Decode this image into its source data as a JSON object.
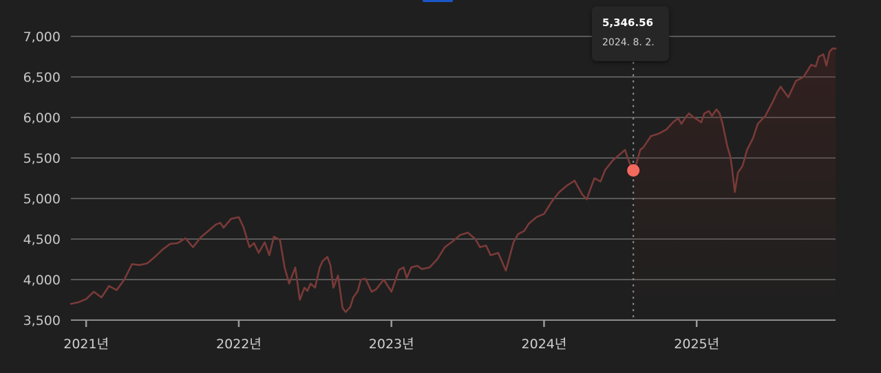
{
  "chart_data": {
    "type": "line",
    "y_ticks": [
      "3,500",
      "4,000",
      "4,500",
      "5,000",
      "5,500",
      "6,000",
      "6,500",
      "7,000"
    ],
    "y_tick_values": [
      3500,
      4000,
      4500,
      5000,
      5500,
      6000,
      6500,
      7000
    ],
    "ylim": [
      3500,
      7000
    ],
    "x_tick_labels": [
      "2021년",
      "2022년",
      "2023년",
      "2024년",
      "2025년"
    ],
    "x_tick_dates": [
      2021.0,
      2022.0,
      2023.0,
      2024.0,
      2025.0
    ],
    "xlim": [
      2020.9,
      2025.91
    ],
    "grid": true,
    "line_color": "#7a3a38",
    "marker_color": "#f4695e",
    "series": [
      {
        "x": [
          2020.9,
          2020.95,
          2021.0,
          2021.05,
          2021.1,
          2021.15,
          2021.2,
          2021.25,
          2021.3,
          2021.35,
          2021.4,
          2021.45,
          2021.5,
          2021.55,
          2021.6,
          2021.65,
          2021.7,
          2021.75,
          2021.8,
          2021.85,
          2021.88,
          2021.9,
          2021.95,
          2022.0,
          2022.03,
          2022.07,
          2022.1,
          2022.13,
          2022.17,
          2022.2,
          2022.23,
          2022.27,
          2022.3,
          2022.33,
          2022.37,
          2022.4,
          2022.43,
          2022.45,
          2022.47,
          2022.5,
          2022.53,
          2022.55,
          2022.58,
          2022.6,
          2022.62,
          2022.65,
          2022.68,
          2022.7,
          2022.73,
          2022.75,
          2022.78,
          2022.8,
          2022.83,
          2022.87,
          2022.9,
          2022.95,
          2023.0,
          2023.05,
          2023.08,
          2023.1,
          2023.13,
          2023.17,
          2023.2,
          2023.25,
          2023.3,
          2023.35,
          2023.4,
          2023.45,
          2023.5,
          2023.55,
          2023.58,
          2023.62,
          2023.65,
          2023.7,
          2023.75,
          2023.8,
          2023.83,
          2023.87,
          2023.9,
          2023.95,
          2024.0,
          2024.05,
          2024.1,
          2024.15,
          2024.2,
          2024.25,
          2024.28,
          2024.3,
          2024.33,
          2024.37,
          2024.4,
          2024.45,
          2024.5,
          2024.53,
          2024.56,
          2024.585,
          2024.6,
          2024.63,
          2024.65,
          2024.7,
          2024.75,
          2024.8,
          2024.85,
          2024.88,
          2024.9,
          2024.93,
          2024.95,
          2024.98,
          2025.0,
          2025.03,
          2025.05,
          2025.08,
          2025.1,
          2025.13,
          2025.15,
          2025.17,
          2025.2,
          2025.22,
          2025.23,
          2025.25,
          2025.27,
          2025.3,
          2025.33,
          2025.37,
          2025.4,
          2025.45,
          2025.5,
          2025.53,
          2025.55,
          2025.6,
          2025.65,
          2025.7,
          2025.72,
          2025.75,
          2025.78,
          2025.8,
          2025.83,
          2025.85,
          2025.87,
          2025.89,
          2025.91
        ],
        "y": [
          3700,
          3720,
          3760,
          3850,
          3780,
          3920,
          3870,
          4000,
          4190,
          4180,
          4200,
          4280,
          4370,
          4440,
          4450,
          4510,
          4400,
          4520,
          4600,
          4680,
          4700,
          4640,
          4750,
          4770,
          4650,
          4400,
          4450,
          4330,
          4460,
          4300,
          4530,
          4490,
          4150,
          3950,
          4150,
          3750,
          3900,
          3860,
          3950,
          3900,
          4150,
          4230,
          4280,
          4180,
          3900,
          4050,
          3650,
          3600,
          3660,
          3780,
          3860,
          4000,
          4010,
          3850,
          3880,
          4000,
          3850,
          4120,
          4150,
          4020,
          4150,
          4170,
          4130,
          4150,
          4250,
          4400,
          4470,
          4550,
          4580,
          4500,
          4400,
          4420,
          4300,
          4330,
          4110,
          4460,
          4560,
          4600,
          4690,
          4770,
          4810,
          4960,
          5080,
          5160,
          5220,
          5050,
          4990,
          5100,
          5250,
          5210,
          5350,
          5470,
          5550,
          5600,
          5440,
          5346.56,
          5400,
          5600,
          5630,
          5770,
          5800,
          5850,
          5950,
          5990,
          5920,
          6010,
          6050,
          6000,
          5980,
          5940,
          6050,
          6080,
          6020,
          6100,
          6050,
          5920,
          5650,
          5520,
          5400,
          5080,
          5320,
          5400,
          5600,
          5750,
          5920,
          6020,
          6200,
          6320,
          6380,
          6250,
          6450,
          6500,
          6560,
          6650,
          6630,
          6750,
          6780,
          6640,
          6810,
          6850,
          6850
        ]
      }
    ],
    "highlight": {
      "x": 2024.585,
      "y": 5346.56
    },
    "tooltip": {
      "value": "5,346.56",
      "date": "2024. 8. 2."
    }
  }
}
